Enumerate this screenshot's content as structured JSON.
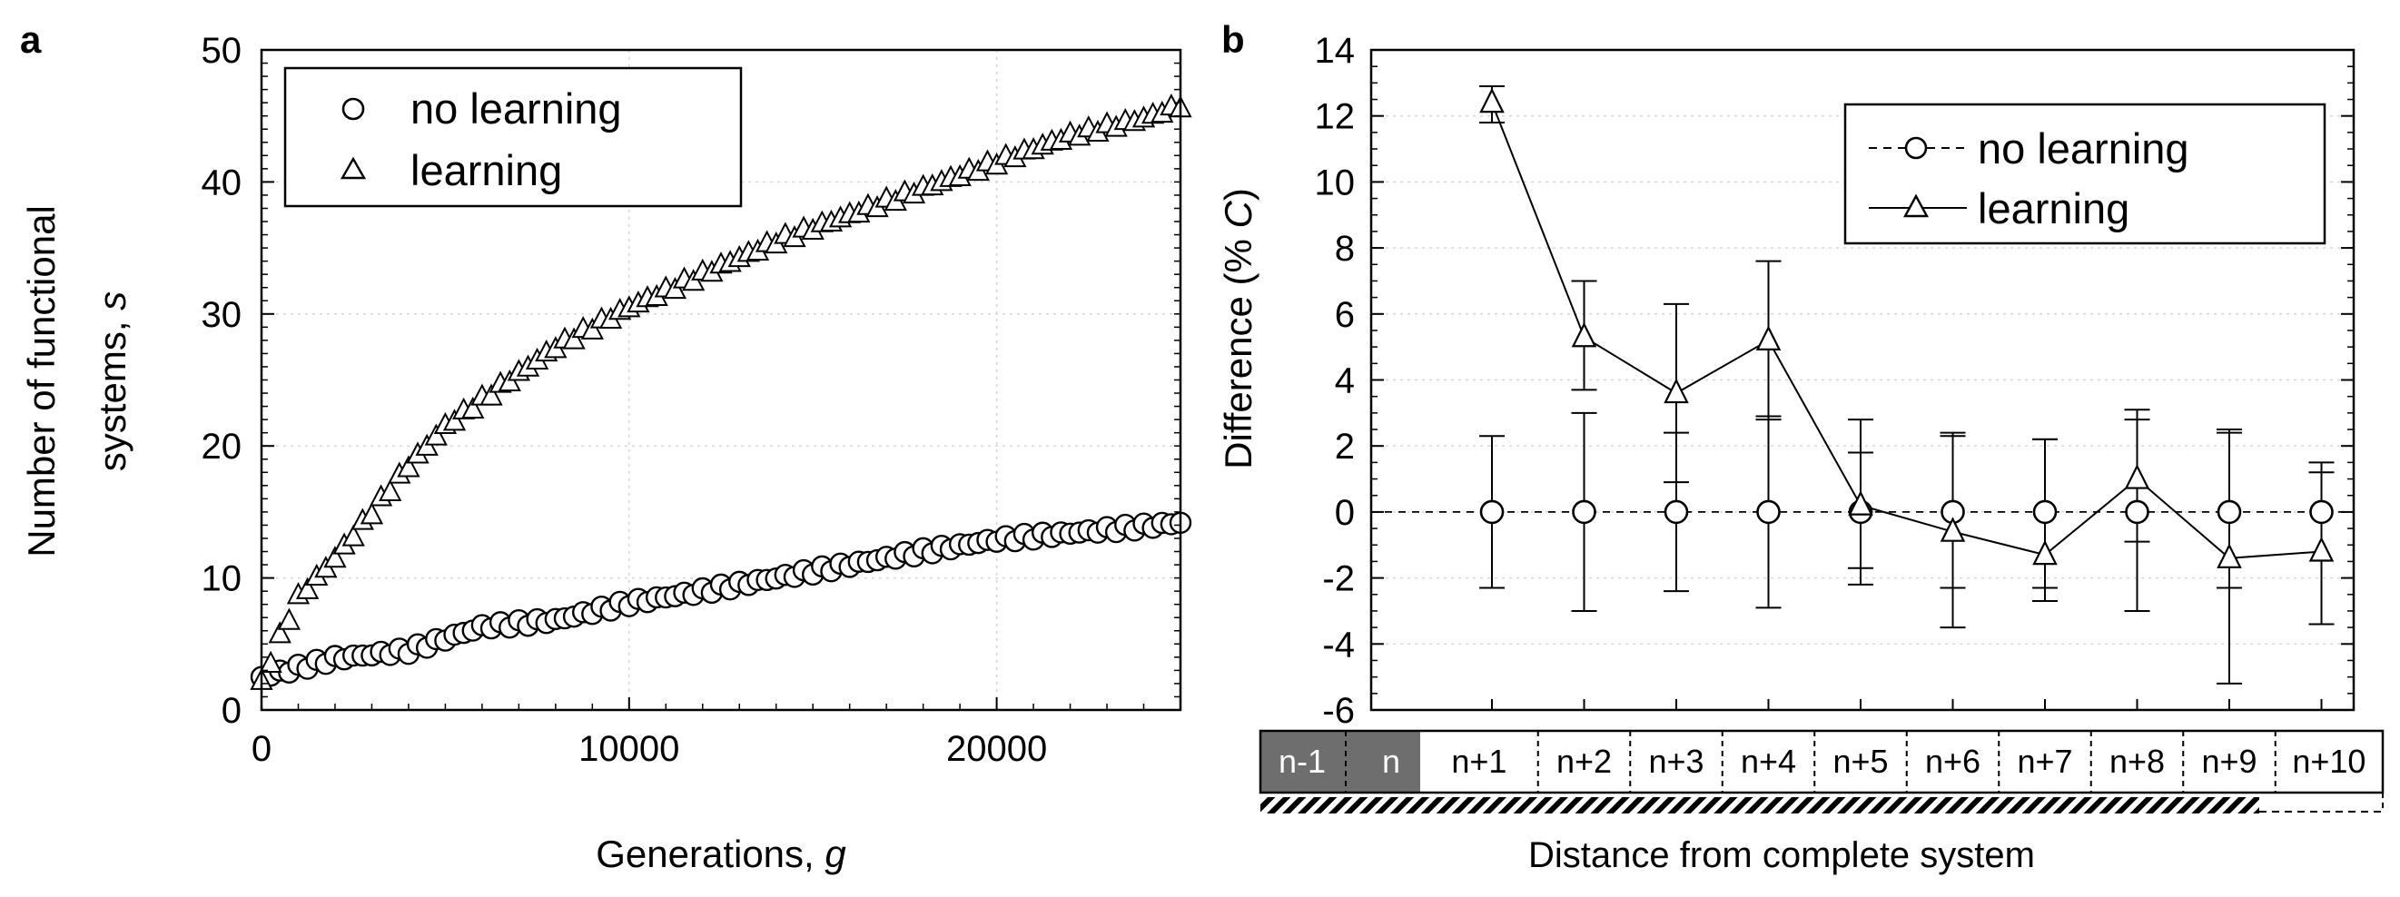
{
  "chart_data": [
    {
      "panel": "a",
      "type": "scatter",
      "title": "",
      "xlabel": "Generations, ",
      "xlabel_var": "g",
      "ylabel_line1": "Number of functional",
      "ylabel_line2": "systems, ",
      "ylabel_var": "s",
      "xlim": [
        0,
        25000
      ],
      "ylim": [
        0,
        50
      ],
      "xticks": [
        0,
        10000,
        20000
      ],
      "yticks": [
        0,
        10,
        20,
        30,
        40,
        50
      ],
      "grid": true,
      "legend_position": "top-left",
      "series": [
        {
          "name": "no learning",
          "marker": "circle",
          "x": [
            0,
            2000,
            4000,
            6000,
            8000,
            10000,
            12000,
            14000,
            16000,
            18000,
            20000,
            22000,
            24000,
            25000
          ],
          "y": [
            2.5,
            3.9,
            4.5,
            6.3,
            6.8,
            8.1,
            9.0,
            10.0,
            11.0,
            12.0,
            12.9,
            13.4,
            13.9,
            14.2
          ]
        },
        {
          "name": "learning",
          "marker": "triangle",
          "x": [
            0,
            500,
            1000,
            2000,
            3000,
            4000,
            5000,
            6000,
            8000,
            10000,
            12000,
            14000,
            16000,
            18000,
            20000,
            22000,
            24000,
            25000
          ],
          "y": [
            2.0,
            5.5,
            8.5,
            11.5,
            15.0,
            18.5,
            21.5,
            23.5,
            27.5,
            30.5,
            33.0,
            35.5,
            37.5,
            39.5,
            41.5,
            43.5,
            44.8,
            45.8
          ]
        }
      ]
    },
    {
      "panel": "b",
      "type": "line",
      "title": "",
      "xlabel": "Distance from complete system",
      "ylabel": "Difference (% ",
      "ylabel_var": "C",
      "ylabel_end": ")",
      "ylim": [
        -6,
        14
      ],
      "yticks": [
        -6,
        -4,
        -2,
        0,
        2,
        4,
        6,
        8,
        10,
        12,
        14
      ],
      "grid": true,
      "legend_position": "top-right",
      "categories": [
        "n+1",
        "n+2",
        "n+3",
        "n+4",
        "n+5",
        "n+6",
        "n+7",
        "n+8",
        "n+9",
        "n+10"
      ],
      "pre_categories": [
        "n-1",
        "n"
      ],
      "series": [
        {
          "name": "no learning",
          "marker": "circle",
          "line": "dashed",
          "values": [
            0,
            0,
            0,
            0,
            0,
            0,
            0,
            0,
            0,
            0
          ],
          "err_low": [
            -2.3,
            -3.0,
            -2.4,
            -2.9,
            -2.2,
            -3.5,
            -2.7,
            -3.0,
            -5.2,
            -3.4
          ],
          "err_high": [
            2.3,
            3.0,
            2.4,
            2.9,
            2.8,
            2.3,
            2.2,
            2.8,
            2.5,
            1.5
          ]
        },
        {
          "name": "learning",
          "marker": "triangle",
          "line": "solid",
          "values": [
            12.4,
            5.3,
            3.6,
            5.2,
            0.2,
            -0.6,
            -1.3,
            1.0,
            -1.4,
            -1.2
          ],
          "err_low": [
            11.8,
            3.7,
            0.9,
            2.8,
            -1.7,
            -2.3,
            -2.3,
            -0.9,
            -2.3,
            -3.4
          ],
          "err_high": [
            12.9,
            7.0,
            6.3,
            7.6,
            1.8,
            2.4,
            2.2,
            3.1,
            2.4,
            1.2
          ]
        }
      ]
    }
  ]
}
